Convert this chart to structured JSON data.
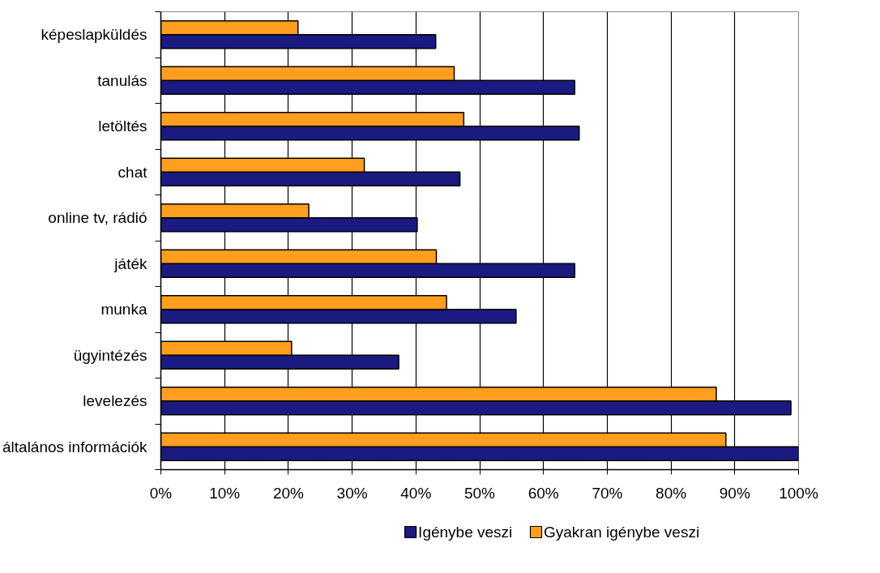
{
  "chart_data": {
    "type": "bar",
    "orientation": "horizontal",
    "categories": [
      "képeslapküldés",
      "tanulás",
      "letöltés",
      "chat",
      "online tv, rádió",
      "játék",
      "munka",
      "ügyintézés",
      "levelezés",
      "általános információk"
    ],
    "series": [
      {
        "name": "Igénybe veszi",
        "color": "#1a1a80",
        "values": [
          43.1,
          64.9,
          65.6,
          46.9,
          40.2,
          64.9,
          55.7,
          37.3,
          98.8,
          100
        ]
      },
      {
        "name": "Gyakran igénybe veszi",
        "color": "#ff9e1f",
        "values": [
          21.5,
          46.0,
          47.5,
          31.9,
          23.2,
          43.2,
          44.8,
          20.5,
          87.1,
          88.6
        ]
      }
    ],
    "xlim": [
      0,
      100
    ],
    "xticks": [
      {
        "value": 0,
        "label": "0%"
      },
      {
        "value": 10,
        "label": "10%"
      },
      {
        "value": 20,
        "label": "20%"
      },
      {
        "value": 30,
        "label": "30%"
      },
      {
        "value": 40,
        "label": "40%"
      },
      {
        "value": 50,
        "label": "50%"
      },
      {
        "value": 60,
        "label": "60%"
      },
      {
        "value": 70,
        "label": "70%"
      },
      {
        "value": 80,
        "label": "80%"
      },
      {
        "value": 90,
        "label": "90%"
      },
      {
        "value": 100,
        "label": "100%"
      }
    ],
    "grid": "x",
    "legend": "bottom"
  }
}
